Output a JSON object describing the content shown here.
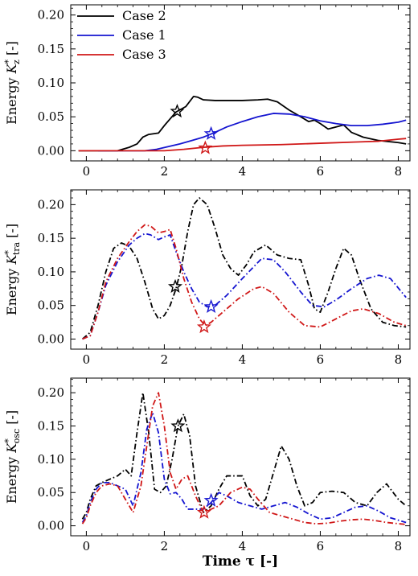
{
  "figure": {
    "xlabel": "Time τ [-]"
  },
  "chart_data": [
    {
      "type": "line",
      "ylabel": "Energy K*z [-]",
      "ylabel_main": "Energy ",
      "ylabel_sym": "K",
      "ylabel_sup": "*",
      "ylabel_sub": "z",
      "ylabel_tail": " [-]",
      "xlim": [
        -0.4,
        8.3
      ],
      "ylim": [
        -0.015,
        0.215
      ],
      "xticks": [
        0,
        2,
        4,
        6,
        8
      ],
      "xticklabels": [
        "0",
        "2",
        "4",
        "6",
        "8"
      ],
      "yticks": [
        0.0,
        0.05,
        0.1,
        0.15,
        0.2
      ],
      "yticklabels": [
        "0.00",
        "0.05",
        "0.10",
        "0.15",
        "0.20"
      ],
      "grid": false,
      "legend": "top-left",
      "series": [
        {
          "name": "Case 2",
          "color": "#000000",
          "dash": "solid",
          "x": [
            -0.2,
            0.8,
            1.1,
            1.3,
            1.45,
            1.6,
            1.85,
            2.0,
            2.15,
            2.3,
            2.55,
            2.75,
            2.85,
            3.0,
            3.3,
            3.6,
            4.0,
            4.4,
            4.65,
            4.9,
            5.2,
            5.5,
            5.7,
            5.85,
            6.0,
            6.2,
            6.4,
            6.6,
            6.8,
            7.1,
            7.5,
            8.0,
            8.2
          ],
          "y": [
            0.0,
            0.0,
            0.005,
            0.01,
            0.02,
            0.024,
            0.026,
            0.037,
            0.047,
            0.057,
            0.065,
            0.08,
            0.079,
            0.075,
            0.074,
            0.074,
            0.074,
            0.075,
            0.076,
            0.072,
            0.06,
            0.05,
            0.043,
            0.045,
            0.04,
            0.032,
            0.035,
            0.038,
            0.027,
            0.02,
            0.015,
            0.012,
            0.01
          ]
        },
        {
          "name": "Case 1",
          "color": "#1515d0",
          "dash": "solid",
          "x": [
            0.3,
            1.5,
            1.8,
            2.1,
            2.4,
            2.7,
            3.0,
            3.3,
            3.6,
            4.0,
            4.4,
            4.8,
            5.2,
            5.6,
            6.0,
            6.4,
            6.8,
            7.2,
            7.6,
            8.0,
            8.2
          ],
          "y": [
            0.0,
            0.0,
            0.002,
            0.006,
            0.01,
            0.015,
            0.02,
            0.027,
            0.035,
            0.043,
            0.05,
            0.055,
            0.054,
            0.05,
            0.044,
            0.04,
            0.037,
            0.037,
            0.039,
            0.042,
            0.045
          ]
        },
        {
          "name": "Case 3",
          "color": "#d01818",
          "dash": "solid",
          "x": [
            -0.2,
            1.0,
            2.0,
            2.5,
            3.0,
            3.5,
            4.0,
            5.0,
            6.0,
            7.0,
            7.5,
            8.0,
            8.2
          ],
          "y": [
            0.0,
            0.0,
            0.0,
            0.002,
            0.005,
            0.007,
            0.008,
            0.009,
            0.011,
            0.013,
            0.014,
            0.017,
            0.018
          ]
        }
      ],
      "markers": [
        {
          "series": "Case 2",
          "x": 2.33,
          "y": 0.058
        },
        {
          "series": "Case 1",
          "x": 3.2,
          "y": 0.025
        },
        {
          "series": "Case 3",
          "x": 3.05,
          "y": 0.004
        }
      ]
    },
    {
      "type": "line",
      "ylabel": "Energy K*tra [-]",
      "ylabel_main": "Energy ",
      "ylabel_sym": "K",
      "ylabel_sup": "*",
      "ylabel_sub": "tra",
      "ylabel_tail": " [-]",
      "xlim": [
        -0.4,
        8.3
      ],
      "ylim": [
        -0.015,
        0.222
      ],
      "xticks": [
        0,
        2,
        4,
        6,
        8
      ],
      "xticklabels": [
        "0",
        "2",
        "4",
        "6",
        "8"
      ],
      "yticks": [
        0.0,
        0.05,
        0.1,
        0.15,
        0.2
      ],
      "yticklabels": [
        "0.00",
        "0.05",
        "0.10",
        "0.15",
        "0.20"
      ],
      "grid": false,
      "series": [
        {
          "name": "Case 2",
          "color": "#000000",
          "dash": "dashdot",
          "x": [
            -0.1,
            0.1,
            0.3,
            0.5,
            0.7,
            0.9,
            1.1,
            1.3,
            1.5,
            1.7,
            1.85,
            2.0,
            2.15,
            2.3,
            2.45,
            2.6,
            2.75,
            2.9,
            3.1,
            3.3,
            3.5,
            3.7,
            3.9,
            4.1,
            4.3,
            4.6,
            4.9,
            5.2,
            5.5,
            5.7,
            5.85,
            6.0,
            6.2,
            6.4,
            6.6,
            6.8,
            7.0,
            7.3,
            7.6,
            7.9,
            8.2
          ],
          "y": [
            0.0,
            0.01,
            0.05,
            0.1,
            0.135,
            0.143,
            0.138,
            0.12,
            0.085,
            0.045,
            0.03,
            0.035,
            0.05,
            0.075,
            0.11,
            0.16,
            0.2,
            0.21,
            0.2,
            0.165,
            0.125,
            0.105,
            0.095,
            0.11,
            0.13,
            0.14,
            0.125,
            0.12,
            0.118,
            0.08,
            0.045,
            0.04,
            0.07,
            0.105,
            0.135,
            0.125,
            0.09,
            0.045,
            0.025,
            0.02,
            0.018
          ]
        },
        {
          "name": "Case 1",
          "color": "#1515d0",
          "dash": "dashdot",
          "x": [
            -0.1,
            0.1,
            0.3,
            0.5,
            0.8,
            1.1,
            1.3,
            1.5,
            1.65,
            1.85,
            2.0,
            2.15,
            2.3,
            2.5,
            2.7,
            2.9,
            3.1,
            3.3,
            3.6,
            4.0,
            4.5,
            4.8,
            5.1,
            5.5,
            5.8,
            6.1,
            6.4,
            6.8,
            7.2,
            7.5,
            7.8,
            8.2
          ],
          "y": [
            0.0,
            0.005,
            0.04,
            0.08,
            0.115,
            0.14,
            0.15,
            0.157,
            0.155,
            0.148,
            0.152,
            0.155,
            0.13,
            0.1,
            0.075,
            0.055,
            0.048,
            0.05,
            0.065,
            0.09,
            0.12,
            0.118,
            0.1,
            0.07,
            0.05,
            0.048,
            0.058,
            0.075,
            0.09,
            0.095,
            0.09,
            0.062
          ]
        },
        {
          "name": "Case 3",
          "color": "#d01818",
          "dash": "dashdot",
          "x": [
            -0.1,
            0.1,
            0.3,
            0.5,
            0.8,
            1.1,
            1.3,
            1.5,
            1.65,
            1.85,
            2.0,
            2.15,
            2.3,
            2.5,
            2.7,
            2.9,
            3.05,
            3.2,
            3.5,
            3.9,
            4.3,
            4.5,
            4.8,
            5.2,
            5.6,
            6.0,
            6.4,
            6.8,
            7.1,
            7.5,
            7.9,
            8.2
          ],
          "y": [
            0.0,
            0.005,
            0.04,
            0.085,
            0.12,
            0.145,
            0.16,
            0.17,
            0.168,
            0.158,
            0.16,
            0.163,
            0.135,
            0.09,
            0.055,
            0.03,
            0.02,
            0.025,
            0.04,
            0.06,
            0.075,
            0.078,
            0.068,
            0.04,
            0.02,
            0.018,
            0.03,
            0.042,
            0.045,
            0.038,
            0.025,
            0.02
          ]
        }
      ],
      "markers": [
        {
          "series": "Case 2",
          "x": 2.28,
          "y": 0.078
        },
        {
          "series": "Case 1",
          "x": 3.2,
          "y": 0.048
        },
        {
          "series": "Case 3",
          "x": 3.02,
          "y": 0.018
        }
      ]
    },
    {
      "type": "line",
      "ylabel": "Energy K*osc [-]",
      "ylabel_main": "Energy ",
      "ylabel_sym": "K",
      "ylabel_sup": "*",
      "ylabel_sub": "osc",
      "ylabel_tail": " [-]",
      "xlim": [
        -0.4,
        8.3
      ],
      "ylim": [
        -0.015,
        0.222
      ],
      "xticks": [
        0,
        2,
        4,
        6,
        8
      ],
      "xticklabels": [
        "0",
        "2",
        "4",
        "6",
        "8"
      ],
      "yticks": [
        0.0,
        0.05,
        0.1,
        0.15,
        0.2
      ],
      "yticklabels": [
        "0.00",
        "0.05",
        "0.10",
        "0.15",
        "0.20"
      ],
      "grid": false,
      "series": [
        {
          "name": "Case 2",
          "color": "#000000",
          "dash": "dashdot",
          "x": [
            -0.1,
            0.0,
            0.1,
            0.25,
            0.4,
            0.6,
            0.8,
            1.0,
            1.15,
            1.3,
            1.45,
            1.6,
            1.75,
            1.9,
            2.05,
            2.2,
            2.35,
            2.5,
            2.65,
            2.8,
            3.0,
            3.2,
            3.4,
            3.6,
            3.8,
            4.0,
            4.2,
            4.4,
            4.6,
            4.8,
            5.0,
            5.2,
            5.4,
            5.6,
            5.8,
            6.0,
            6.3,
            6.6,
            6.9,
            7.2,
            7.45,
            7.7,
            8.0,
            8.2
          ],
          "y": [
            0.01,
            0.02,
            0.04,
            0.06,
            0.065,
            0.07,
            0.075,
            0.085,
            0.075,
            0.14,
            0.2,
            0.14,
            0.055,
            0.05,
            0.06,
            0.1,
            0.15,
            0.168,
            0.135,
            0.06,
            0.02,
            0.03,
            0.055,
            0.075,
            0.075,
            0.075,
            0.045,
            0.03,
            0.04,
            0.08,
            0.12,
            0.1,
            0.06,
            0.03,
            0.035,
            0.05,
            0.052,
            0.05,
            0.035,
            0.03,
            0.05,
            0.063,
            0.04,
            0.03
          ]
        },
        {
          "name": "Case 1",
          "color": "#1515d0",
          "dash": "dashdot",
          "x": [
            -0.1,
            0.0,
            0.1,
            0.25,
            0.4,
            0.6,
            0.8,
            1.0,
            1.2,
            1.4,
            1.55,
            1.7,
            1.85,
            2.0,
            2.15,
            2.3,
            2.45,
            2.6,
            2.8,
            3.0,
            3.2,
            3.4,
            3.6,
            3.9,
            4.2,
            4.5,
            4.8,
            5.1,
            5.4,
            5.7,
            6.0,
            6.3,
            6.6,
            6.9,
            7.2,
            7.5,
            7.8,
            8.2
          ],
          "y": [
            0.005,
            0.015,
            0.035,
            0.055,
            0.065,
            0.065,
            0.06,
            0.055,
            0.03,
            0.08,
            0.145,
            0.17,
            0.14,
            0.07,
            0.048,
            0.05,
            0.04,
            0.025,
            0.025,
            0.025,
            0.035,
            0.05,
            0.045,
            0.035,
            0.03,
            0.025,
            0.03,
            0.035,
            0.028,
            0.018,
            0.01,
            0.012,
            0.02,
            0.028,
            0.03,
            0.022,
            0.012,
            0.005
          ]
        },
        {
          "name": "Case 3",
          "color": "#d01818",
          "dash": "dashdot",
          "x": [
            -0.1,
            0.0,
            0.1,
            0.25,
            0.4,
            0.6,
            0.8,
            1.0,
            1.2,
            1.4,
            1.55,
            1.7,
            1.85,
            2.0,
            2.15,
            2.3,
            2.45,
            2.6,
            2.8,
            3.0,
            3.2,
            3.4,
            3.7,
            4.0,
            4.2,
            4.4,
            4.7,
            5.0,
            5.3,
            5.6,
            5.9,
            6.2,
            6.5,
            6.8,
            7.1,
            7.4,
            7.7,
            8.2
          ],
          "y": [
            0.003,
            0.012,
            0.03,
            0.05,
            0.06,
            0.063,
            0.06,
            0.04,
            0.02,
            0.06,
            0.12,
            0.18,
            0.2,
            0.15,
            0.08,
            0.055,
            0.07,
            0.075,
            0.045,
            0.02,
            0.025,
            0.03,
            0.05,
            0.058,
            0.055,
            0.04,
            0.02,
            0.015,
            0.01,
            0.005,
            0.003,
            0.004,
            0.007,
            0.009,
            0.01,
            0.008,
            0.005,
            0.002
          ]
        }
      ],
      "markers": [
        {
          "series": "Case 2",
          "x": 2.35,
          "y": 0.15
        },
        {
          "series": "Case 1",
          "x": 3.2,
          "y": 0.038
        },
        {
          "series": "Case 3",
          "x": 3.02,
          "y": 0.02
        }
      ]
    }
  ]
}
